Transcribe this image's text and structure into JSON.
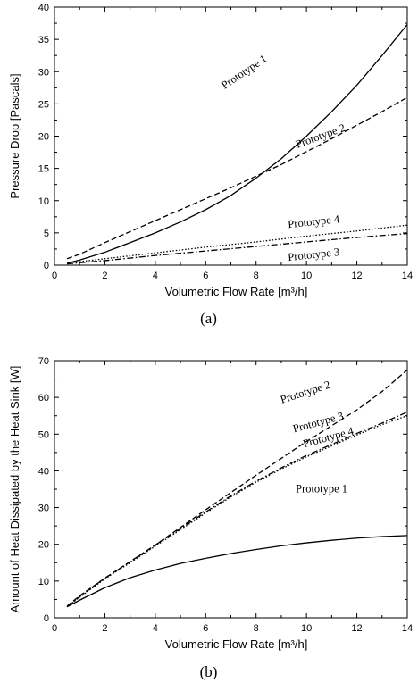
{
  "chart_data": [
    {
      "type": "line",
      "caption": "(a)",
      "xlabel": "Volumetric Flow Rate [m³/h]",
      "ylabel": "Pressure Drop [Pascals]",
      "xlim": [
        0,
        14
      ],
      "ylim": [
        0,
        40
      ],
      "xticks": [
        0,
        2,
        4,
        6,
        8,
        10,
        12,
        14
      ],
      "yticks": [
        0,
        5,
        10,
        15,
        20,
        25,
        30,
        35,
        40
      ],
      "grid": false,
      "series": [
        {
          "name": "Prototype 1",
          "style": "solid",
          "x": [
            0.5,
            1,
            2,
            3,
            4,
            5,
            6,
            7,
            8,
            9,
            10,
            11,
            12,
            13,
            14
          ],
          "y": [
            0.3,
            0.8,
            2.0,
            3.5,
            5.0,
            6.7,
            8.6,
            10.8,
            13.5,
            16.5,
            20.0,
            23.8,
            27.9,
            32.5,
            37.3
          ]
        },
        {
          "name": "Prototype 2",
          "style": "dashed",
          "x": [
            0.5,
            1,
            2,
            3,
            4,
            5,
            6,
            7,
            8,
            9,
            10,
            11,
            12,
            13,
            14
          ],
          "y": [
            1.0,
            1.7,
            3.5,
            5.2,
            6.9,
            8.6,
            10.3,
            12.0,
            13.8,
            15.6,
            17.6,
            19.6,
            21.7,
            23.8,
            26.0
          ]
        },
        {
          "name": "Prototype 4",
          "style": "dotted",
          "x": [
            0.5,
            2,
            4,
            6,
            8,
            10,
            12,
            14
          ],
          "y": [
            0.3,
            1.0,
            1.9,
            2.8,
            3.6,
            4.5,
            5.3,
            6.2
          ]
        },
        {
          "name": "Prototype 3",
          "style": "dashdot",
          "x": [
            0.5,
            2,
            4,
            6,
            8,
            10,
            12,
            14
          ],
          "y": [
            0.2,
            0.7,
            1.5,
            2.2,
            2.9,
            3.6,
            4.3,
            4.9
          ]
        }
      ]
    },
    {
      "type": "line",
      "caption": "(b)",
      "xlabel": "Volumetric Flow Rate [m³/h]",
      "ylabel": "Amount of Heat Dissipated by the Heat Sink [W]",
      "xlim": [
        0,
        14
      ],
      "ylim": [
        0,
        70
      ],
      "xticks": [
        0,
        2,
        4,
        6,
        8,
        10,
        12,
        14
      ],
      "yticks": [
        0,
        10,
        20,
        30,
        40,
        50,
        60,
        70
      ],
      "grid": false,
      "series": [
        {
          "name": "Prototype 2",
          "style": "dashed",
          "x": [
            0.5,
            1,
            2,
            3,
            4,
            5,
            6,
            7,
            8,
            9,
            10,
            11,
            12,
            13,
            14
          ],
          "y": [
            3.2,
            6.0,
            10.8,
            15.3,
            19.8,
            24.6,
            29.4,
            34.1,
            38.8,
            43.4,
            48.0,
            52.3,
            56.6,
            61.6,
            67.5
          ]
        },
        {
          "name": "Prototype 3",
          "style": "dashdot",
          "x": [
            0.5,
            1,
            2,
            3,
            4,
            5,
            6,
            7,
            8,
            9,
            10,
            11,
            12,
            13,
            14
          ],
          "y": [
            3.0,
            5.8,
            10.8,
            15.2,
            19.8,
            24.3,
            28.8,
            33.2,
            37.2,
            40.8,
            44.2,
            47.2,
            50.2,
            53.0,
            56.0
          ]
        },
        {
          "name": "Prototype 4",
          "style": "dotted",
          "x": [
            0.5,
            1,
            2,
            3,
            4,
            5,
            6,
            7,
            8,
            9,
            10,
            11,
            12,
            13,
            14
          ],
          "y": [
            3.0,
            5.6,
            10.6,
            15.0,
            19.5,
            24.0,
            28.5,
            32.9,
            36.9,
            40.5,
            43.8,
            46.8,
            49.8,
            52.6,
            55.0
          ]
        },
        {
          "name": "Prototype 1",
          "style": "solid",
          "x": [
            0.5,
            1,
            2,
            3,
            4,
            5,
            6,
            7,
            8,
            9,
            10,
            11,
            12,
            13,
            14
          ],
          "y": [
            3.0,
            4.8,
            8.2,
            10.9,
            13.0,
            14.8,
            16.2,
            17.5,
            18.6,
            19.6,
            20.4,
            21.1,
            21.7,
            22.1,
            22.4
          ]
        }
      ]
    }
  ]
}
